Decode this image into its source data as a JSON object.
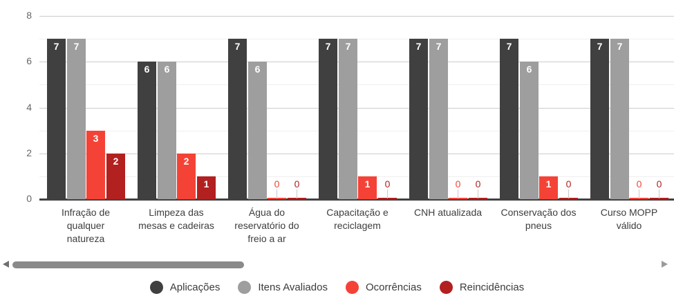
{
  "chart_data": {
    "type": "bar",
    "title": "",
    "xlabel": "",
    "ylabel": "",
    "ylim": [
      0,
      8
    ],
    "yticks": [
      0,
      2,
      4,
      6,
      8
    ],
    "grid": true,
    "legend_position": "bottom",
    "annotations": "values labeled on each bar",
    "categories": [
      "Infração de\nqualquer\nnatureza",
      "Limpeza das\nmesas e cadeiras",
      "Água do\nreservatório do\nfreio a ar",
      "Capacitação e\nreciclagem",
      "CNH atualizada",
      "Conservação dos\npneus",
      "Curso MOPP\nválido"
    ],
    "series": [
      {
        "name": "Aplicações",
        "color": "#404040",
        "values": [
          7,
          6,
          7,
          7,
          7,
          7,
          7
        ]
      },
      {
        "name": "Itens Avaliados",
        "color": "#9e9e9e",
        "values": [
          7,
          6,
          6,
          7,
          7,
          6,
          7
        ]
      },
      {
        "name": "Ocorrências",
        "color": "#f44336",
        "values": [
          3,
          2,
          0,
          1,
          0,
          1,
          0
        ]
      },
      {
        "name": "Reincidências",
        "color": "#b22020",
        "values": [
          2,
          1,
          0,
          0,
          0,
          0,
          0
        ]
      }
    ]
  },
  "colors": {
    "axis_baseline": "#424242",
    "major_gridline": "#cccccc",
    "minor_gridline": "#efefef",
    "axis_tick_text": "#666666",
    "category_text": "#3d3d3d",
    "annotation_text": "#ffffff"
  },
  "scrollbar": {
    "left_arrow_icon": "left-triangle",
    "right_arrow_icon": "right-triangle",
    "thumb": "horizontal-thumb"
  }
}
